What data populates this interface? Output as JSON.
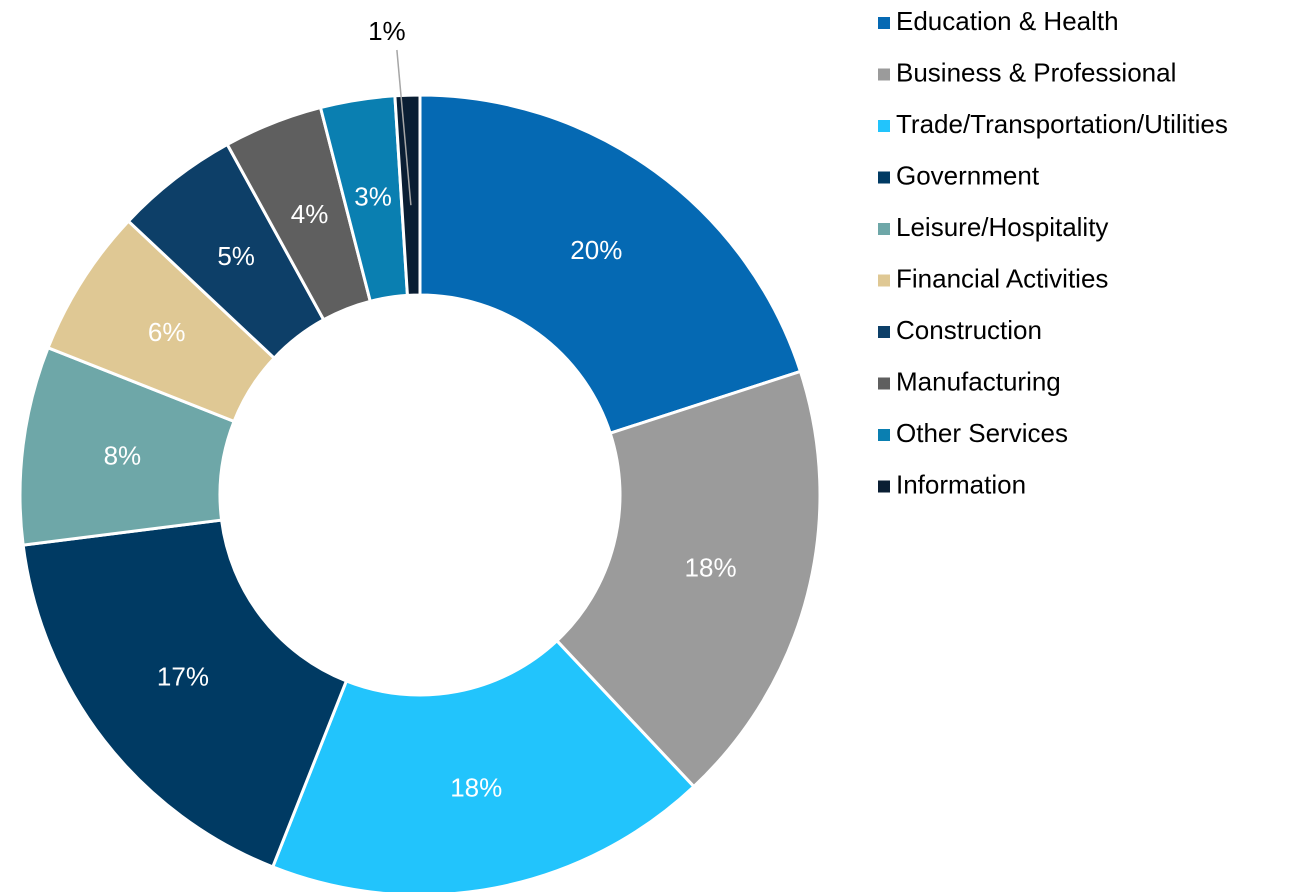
{
  "chart_data": {
    "type": "donut",
    "categories": [
      "Education & Health",
      "Business & Professional",
      "Trade/Transportation/Utilities",
      "Government",
      "Leisure/Hospitality",
      "Financial Activities",
      "Construction",
      "Manufacturing",
      "Other Services",
      "Information"
    ],
    "values": [
      20,
      18,
      18,
      17,
      8,
      6,
      5,
      4,
      3,
      1
    ],
    "value_labels": [
      "20%",
      "18%",
      "18%",
      "17%",
      "8%",
      "6%",
      "5%",
      "4%",
      "3%",
      "1%"
    ],
    "colors": [
      "#0569b3",
      "#9b9b9b",
      "#22c4fc",
      "#003a63",
      "#6ea7a8",
      "#dfc894",
      "#0d3f68",
      "#5f5f5f",
      "#0a7fb1",
      "#0a1e33"
    ],
    "legend": "right"
  }
}
